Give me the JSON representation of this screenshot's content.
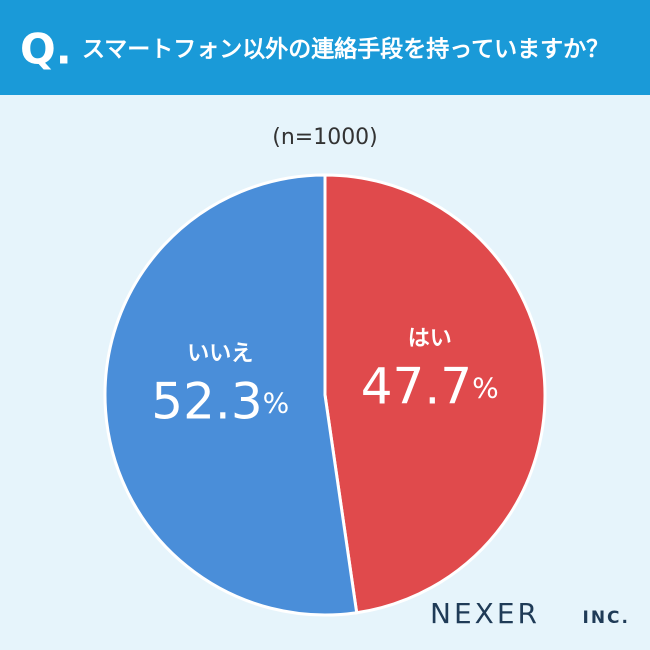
{
  "chart_data": {
    "type": "pie",
    "question_mark": "Q.",
    "title": "スマートフォン以外の連絡手段を持っていますか？",
    "subtitle": "(n=1000)",
    "categories": [
      "はい",
      "いいえ"
    ],
    "values": [
      47.7,
      52.3
    ],
    "value_labels": [
      "47.7%",
      "52.3%"
    ],
    "colors": [
      "#e04a4c",
      "#4a8ed9"
    ],
    "brand": "NEXER",
    "brand_suffix": "INC."
  }
}
